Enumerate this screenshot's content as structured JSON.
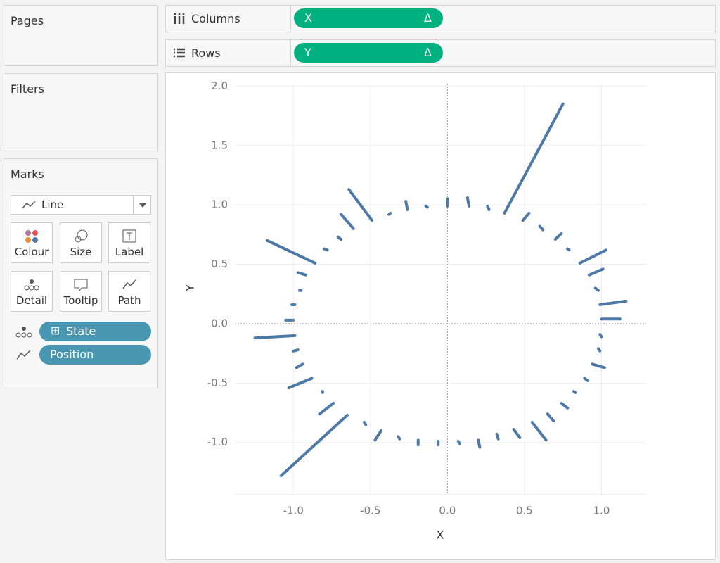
{
  "panels": {
    "pages": "Pages",
    "filters": "Filters",
    "marks": "Marks"
  },
  "marks": {
    "mark_type": "Line",
    "buttons": [
      "Colour",
      "Size",
      "Label",
      "Detail",
      "Tooltip",
      "Path"
    ],
    "fields": [
      {
        "name": "State",
        "icon": "⊞"
      },
      {
        "name": "Position"
      }
    ]
  },
  "shelves": {
    "columns": {
      "label": "Columns",
      "pill": "X",
      "pill_icon": "Δ"
    },
    "rows": {
      "label": "Rows",
      "pill": "Y",
      "pill_icon": "Δ"
    }
  },
  "chart_data": {
    "type": "line",
    "x_label": "X",
    "y_label": "Y",
    "color": "#4e79a7",
    "xlim": [
      -1.38,
      1.29
    ],
    "ylim": [
      -1.44,
      2.02
    ],
    "xticks": [
      {
        "value": -1,
        "label": "-1.0"
      },
      {
        "value": -0.5,
        "label": "-0.5"
      },
      {
        "value": 0,
        "label": "0.0"
      },
      {
        "value": 0.5,
        "label": "0.5"
      },
      {
        "value": 1,
        "label": "1.0"
      }
    ],
    "yticks": [
      {
        "value": -1,
        "label": "-1.0"
      },
      {
        "value": -0.5,
        "label": "-0.5"
      },
      {
        "value": 0,
        "label": "0.0"
      },
      {
        "value": 0.5,
        "label": "0.5"
      },
      {
        "value": 1,
        "label": "1.0"
      },
      {
        "value": 1.5,
        "label": "1.5"
      },
      {
        "value": 2,
        "label": "2.0"
      }
    ],
    "grid": true,
    "series": [
      {
        "x": [
          0,
          0
        ],
        "values": [
          1.05,
          0.99
        ]
      },
      {
        "x": [
          0.13,
          0.14
        ],
        "values": [
          1.06,
          0.99
        ]
      },
      {
        "x": [
          0.26,
          0.27
        ],
        "values": [
          0.99,
          0.96
        ]
      },
      {
        "x": [
          0.37,
          0.75
        ],
        "values": [
          0.93,
          1.85
        ]
      },
      {
        "x": [
          0.49,
          0.53
        ],
        "values": [
          0.87,
          0.93
        ]
      },
      {
        "x": [
          0.6,
          0.62
        ],
        "values": [
          0.82,
          0.79
        ]
      },
      {
        "x": [
          0.7,
          0.74
        ],
        "values": [
          0.71,
          0.76
        ]
      },
      {
        "x": [
          0.78,
          0.79
        ],
        "values": [
          0.63,
          0.62
        ]
      },
      {
        "x": [
          0.86,
          1.03
        ],
        "values": [
          0.51,
          0.62
        ]
      },
      {
        "x": [
          0.92,
          1.01
        ],
        "values": [
          0.41,
          0.46
        ]
      },
      {
        "x": [
          0.96,
          0.98
        ],
        "values": [
          0.3,
          0.28
        ]
      },
      {
        "x": [
          0.99,
          1.16
        ],
        "values": [
          0.16,
          0.19
        ]
      },
      {
        "x": [
          1.0,
          1.12
        ],
        "values": [
          0.04,
          0.04
        ]
      },
      {
        "x": [
          0.99,
          1.0
        ],
        "values": [
          -0.09,
          -0.11
        ]
      },
      {
        "x": [
          0.98,
          0.99
        ],
        "values": [
          -0.21,
          -0.23
        ]
      },
      {
        "x": [
          0.94,
          1.02
        ],
        "values": [
          -0.34,
          -0.37
        ]
      },
      {
        "x": [
          0.89,
          0.91
        ],
        "values": [
          -0.46,
          -0.48
        ]
      },
      {
        "x": [
          0.82,
          0.83
        ],
        "values": [
          -0.57,
          -0.58
        ]
      },
      {
        "x": [
          0.74,
          0.78
        ],
        "values": [
          -0.67,
          -0.71
        ]
      },
      {
        "x": [
          0.65,
          0.69
        ],
        "values": [
          -0.76,
          -0.82
        ]
      },
      {
        "x": [
          0.55,
          0.64
        ],
        "values": [
          -0.83,
          -0.98
        ]
      },
      {
        "x": [
          0.43,
          0.47
        ],
        "values": [
          -0.89,
          -0.96
        ]
      },
      {
        "x": [
          0.32,
          0.33
        ],
        "values": [
          -0.93,
          -0.97
        ]
      },
      {
        "x": [
          0.2,
          0.21
        ],
        "values": [
          -0.98,
          -1.04
        ]
      },
      {
        "x": [
          0.07,
          0.08
        ],
        "values": [
          -0.99,
          -1.01
        ]
      },
      {
        "x": [
          -0.06,
          -0.06
        ],
        "values": [
          -0.99,
          -1.02
        ]
      },
      {
        "x": [
          -0.19,
          -0.19
        ],
        "values": [
          -0.98,
          -1.02
        ]
      },
      {
        "x": [
          -0.32,
          -0.31
        ],
        "values": [
          -0.95,
          -0.97
        ]
      },
      {
        "x": [
          -0.43,
          -0.47
        ],
        "values": [
          -0.9,
          -0.98
        ]
      },
      {
        "x": [
          -0.54,
          -0.53
        ],
        "values": [
          -0.83,
          -0.85
        ]
      },
      {
        "x": [
          -0.65,
          -1.08
        ],
        "values": [
          -0.77,
          -1.28
        ]
      },
      {
        "x": [
          -0.74,
          -0.83
        ],
        "values": [
          -0.67,
          -0.76
        ]
      },
      {
        "x": [
          -0.81,
          -0.81
        ],
        "values": [
          -0.57,
          -0.58
        ]
      },
      {
        "x": [
          -0.88,
          -1.03
        ],
        "values": [
          -0.46,
          -0.54
        ]
      },
      {
        "x": [
          -0.94,
          -0.98
        ],
        "values": [
          -0.34,
          -0.37
        ]
      },
      {
        "x": [
          -0.97,
          -1.0
        ],
        "values": [
          -0.22,
          -0.23
        ]
      },
      {
        "x": [
          -0.99,
          -1.25
        ],
        "values": [
          -0.1,
          -0.12
        ]
      },
      {
        "x": [
          -1.0,
          -1.05
        ],
        "values": [
          0.03,
          0.03
        ]
      },
      {
        "x": [
          -0.99,
          -1.01
        ],
        "values": [
          0.16,
          0.16
        ]
      },
      {
        "x": [
          -0.96,
          -0.95
        ],
        "values": [
          0.28,
          0.28
        ]
      },
      {
        "x": [
          -0.92,
          -0.97
        ],
        "values": [
          0.41,
          0.43
        ]
      },
      {
        "x": [
          -0.86,
          -1.17
        ],
        "values": [
          0.51,
          0.7
        ]
      },
      {
        "x": [
          -0.8,
          -0.78
        ],
        "values": [
          0.63,
          0.62
        ]
      },
      {
        "x": [
          -0.69,
          -0.71
        ],
        "values": [
          0.71,
          0.73
        ]
      },
      {
        "x": [
          -0.61,
          -0.69
        ],
        "values": [
          0.8,
          0.92
        ]
      },
      {
        "x": [
          -0.49,
          -0.64
        ],
        "values": [
          0.87,
          1.13
        ]
      },
      {
        "x": [
          -0.38,
          -0.37
        ],
        "values": [
          0.92,
          0.93
        ]
      },
      {
        "x": [
          -0.27,
          -0.26
        ],
        "values": [
          1.03,
          0.96
        ]
      },
      {
        "x": [
          -0.14,
          -0.13
        ],
        "values": [
          0.99,
          0.98
        ]
      }
    ]
  }
}
